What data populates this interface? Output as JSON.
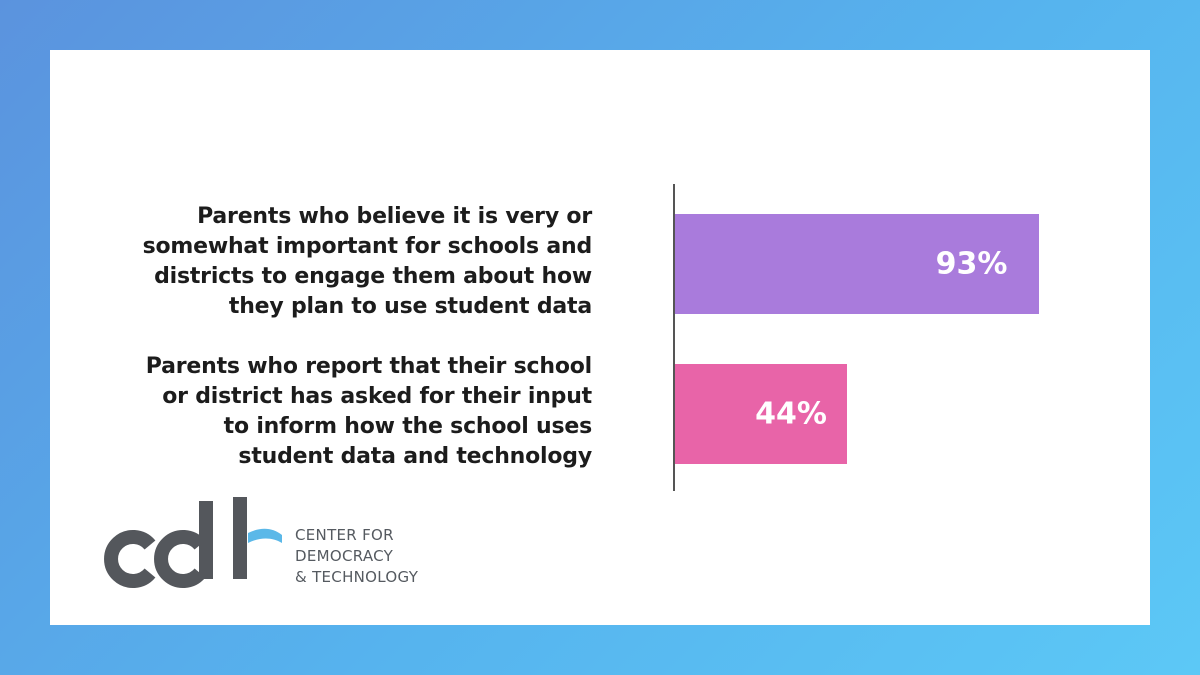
{
  "chart_data": {
    "type": "bar",
    "orientation": "horizontal",
    "categories": [
      "Parents who believe it is very or somewhat important for schools and districts to engage them about how they plan to use student data",
      "Parents who report that their school or district has asked for their input to inform how the school uses student data and technology"
    ],
    "category_lines": [
      [
        "Parents who believe it is very or",
        "somewhat important for schools and",
        "districts to engage them about how",
        "they plan to use student data"
      ],
      [
        "Parents who report that their school",
        "or district has asked for their input",
        "to inform how the school uses",
        "student data and technology"
      ]
    ],
    "values": [
      93,
      44
    ],
    "value_labels": [
      "93%",
      "44%"
    ],
    "xlim": [
      0,
      100
    ],
    "bar_colors": [
      "#a97bdc",
      "#e864a8"
    ],
    "grid": false
  },
  "logo": {
    "line1": "CENTER FOR",
    "line2": "DEMOCRACY",
    "line3": "& TECHNOLOGY",
    "mark_color": "#54575c",
    "accent_color": "#5bb8e8"
  }
}
